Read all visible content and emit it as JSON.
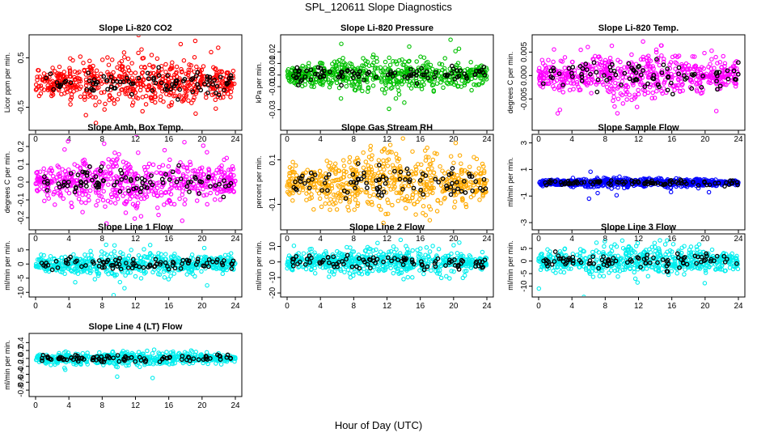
{
  "main_title": "SPL_120611  Slope Diagnostics",
  "x_axis_label": "Hour of Day (UTC)",
  "chart_data": [
    {
      "type": "scatter",
      "title": "Slope Li-820 CO2",
      "ylabel": "Licor ppm per min.",
      "color": "#ff0000",
      "xlim": [
        0,
        24
      ],
      "ylim": [
        -0.9,
        0.9
      ],
      "xticks": [
        0,
        4,
        8,
        12,
        16,
        20,
        24
      ],
      "yticks": [
        -0.5,
        0.5
      ],
      "ytick_labels": [
        "-0.5",
        "0.5"
      ],
      "spread": 0.2
    },
    {
      "type": "scatter",
      "title": "Slope Li-820 Pressure",
      "ylabel": "kPa per min.",
      "color": "#00c000",
      "xlim": [
        0,
        24
      ],
      "ylim": [
        -0.045,
        0.032
      ],
      "xticks": [
        0,
        4,
        8,
        12,
        16,
        20,
        24
      ],
      "yticks": [
        -0.03,
        -0.01,
        0.0,
        0.01,
        0.02
      ],
      "ytick_labels": [
        "-0.03",
        "-0.01",
        "0.00",
        "0.01",
        "0.02"
      ],
      "spread": 0.006
    },
    {
      "type": "scatter",
      "title": "Slope Li-820 Temp.",
      "ylabel": "degrees C per min.",
      "color": "#ff00ff",
      "xlim": [
        0,
        24
      ],
      "ylim": [
        -0.011,
        0.008
      ],
      "xticks": [
        0,
        4,
        8,
        12,
        16,
        20,
        24
      ],
      "yticks": [
        -0.005,
        0.0,
        0.005
      ],
      "ytick_labels": [
        "-0.005",
        "0.000",
        "0.005"
      ],
      "spread": 0.0022
    },
    {
      "type": "scatter",
      "title": "Slope Amb. Box Temp.",
      "ylabel": "degrees C per min.",
      "color": "#ff00ff",
      "xlim": [
        0,
        24
      ],
      "ylim": [
        -0.25,
        0.25
      ],
      "xticks": [
        0,
        4,
        8,
        12,
        16,
        20,
        24
      ],
      "yticks": [
        -0.2,
        -0.1,
        0.0,
        0.1,
        0.2
      ],
      "ytick_labels": [
        "-0.2",
        "-0.1",
        "0.0",
        "0.1",
        "0.2"
      ],
      "spread": 0.06
    },
    {
      "type": "scatter",
      "title": "Slope Gas Stream RH",
      "ylabel": "percent per min.",
      "color": "#ffaa00",
      "xlim": [
        0,
        24
      ],
      "ylim": [
        -0.2,
        0.2
      ],
      "xticks": [
        0,
        4,
        8,
        12,
        16,
        20,
        24
      ],
      "yticks": [
        -0.1,
        0.1
      ],
      "ytick_labels": [
        "-0.1",
        "0.1"
      ],
      "spread": 0.055
    },
    {
      "type": "scatter",
      "title": "Slope Sample Flow",
      "ylabel": "ml/min per min.",
      "color": "#0000ff",
      "xlim": [
        0,
        24
      ],
      "ylim": [
        -3.3,
        3.4
      ],
      "xticks": [
        0,
        4,
        8,
        12,
        16,
        20,
        24
      ],
      "yticks": [
        -3,
        -1,
        1,
        3
      ],
      "ytick_labels": [
        "-3",
        "-1",
        "1",
        "3"
      ],
      "spread": 0.15
    },
    {
      "type": "scatter",
      "title": "Slope Line 1 Flow",
      "ylabel": "ml/min per min.",
      "color": "#00eeee",
      "xlim": [
        0,
        24
      ],
      "ylim": [
        -10.5,
        9.5
      ],
      "xticks": [
        0,
        4,
        8,
        12,
        16,
        20,
        24
      ],
      "yticks": [
        -10,
        -5,
        0,
        5
      ],
      "ytick_labels": [
        "-10",
        "-5",
        "0",
        "5"
      ],
      "spread": 1.8
    },
    {
      "type": "scatter",
      "title": "Slope Line 2 Flow",
      "ylabel": "ml/min per min.",
      "color": "#00eeee",
      "xlim": [
        0,
        24
      ],
      "ylim": [
        -20.5,
        16
      ],
      "xticks": [
        0,
        4,
        8,
        12,
        16,
        20,
        24
      ],
      "yticks": [
        -20,
        -10,
        0,
        10
      ],
      "ytick_labels": [
        "-20",
        "-10",
        "0",
        "10"
      ],
      "spread": 3.5
    },
    {
      "type": "scatter",
      "title": "Slope Line 3 Flow",
      "ylabel": "ml/min per min.",
      "color": "#00eeee",
      "xlim": [
        0,
        24
      ],
      "ylim": [
        -13,
        9.5
      ],
      "xticks": [
        0,
        4,
        8,
        12,
        16,
        20,
        24
      ],
      "yticks": [
        -10,
        -5,
        0,
        5
      ],
      "ytick_labels": [
        "-10",
        "-5",
        "0",
        "5"
      ],
      "spread": 2.5
    },
    {
      "type": "scatter",
      "title": "Slope Line 4 (LT) Flow",
      "ylabel": "ml/min per min.",
      "color": "#00eeee",
      "xlim": [
        0,
        24
      ],
      "ylim": [
        -0.88,
        0.55
      ],
      "xticks": [
        0,
        4,
        8,
        12,
        16,
        20,
        24
      ],
      "yticks": [
        -0.8,
        -0.6,
        -0.4,
        -0.2,
        0.0,
        0.2,
        0.4
      ],
      "ytick_labels": [
        "-0.8",
        "-0.6",
        "-0.4",
        "-0.2",
        "0.0",
        "0.2",
        "0.4"
      ],
      "spread": 0.07
    }
  ]
}
